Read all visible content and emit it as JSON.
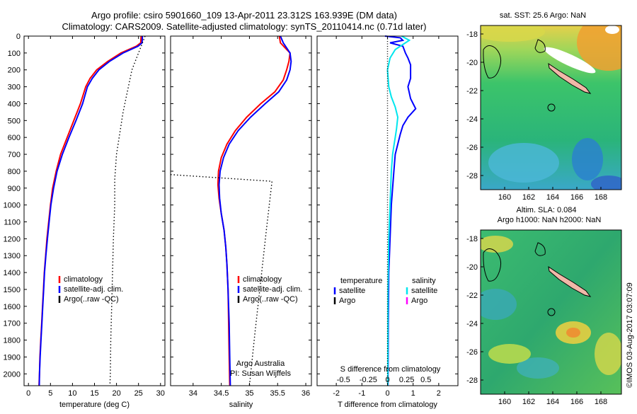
{
  "title": {
    "line1": "Argo profile: csiro 5901660_109 13-Apr-2011 23.312S 163.939E (DM data)",
    "line2": "Climatology: CARS2009. Satellite-adjusted climatology: synTS_20110414.nc (0.71d later)"
  },
  "colors": {
    "climatology": "#ff0000",
    "satellite": "#0000ff",
    "argo": "#000000",
    "sal_satellite": "#00e6ee",
    "sal_argo": "#ff00ff"
  },
  "chart_data": [
    {
      "type": "line",
      "id": "temperature",
      "xlabel": "temperature (deg C)",
      "xlim": [
        -1,
        31
      ],
      "xticks": [
        0,
        5,
        10,
        15,
        20,
        25,
        30
      ],
      "ylim": [
        2070,
        0
      ],
      "yticks": [
        0,
        100,
        200,
        300,
        400,
        500,
        600,
        700,
        800,
        900,
        1000,
        1100,
        1200,
        1300,
        1400,
        1500,
        1600,
        1700,
        1800,
        1900,
        2000
      ],
      "legend": [
        "climatology",
        "satellite-adj. clim.",
        "Argo(..raw -QC)"
      ],
      "series": [
        {
          "name": "climatology",
          "color": "#ff0000",
          "dash": "",
          "points": [
            [
              25.6,
              0
            ],
            [
              25.5,
              40
            ],
            [
              24.5,
              60
            ],
            [
              21,
              100
            ],
            [
              18,
              150
            ],
            [
              15.5,
              200
            ],
            [
              14,
              250
            ],
            [
              13,
              300
            ],
            [
              11.8,
              400
            ],
            [
              10.3,
              500
            ],
            [
              8.8,
              600
            ],
            [
              7.3,
              700
            ],
            [
              6.3,
              800
            ],
            [
              5.5,
              900
            ],
            [
              5,
              1000
            ],
            [
              4.6,
              1100
            ],
            [
              4.2,
              1200
            ],
            [
              3.9,
              1300
            ],
            [
              3.6,
              1400
            ],
            [
              3.4,
              1500
            ],
            [
              3.2,
              1600
            ],
            [
              3,
              1700
            ],
            [
              2.8,
              1800
            ],
            [
              2.6,
              1900
            ],
            [
              2.5,
              2000
            ],
            [
              2.4,
              2070
            ]
          ]
        },
        {
          "name": "satellite-adj. clim.",
          "color": "#0000ff",
          "dash": "",
          "points": [
            [
              25.9,
              0
            ],
            [
              25.8,
              40
            ],
            [
              24.9,
              60
            ],
            [
              21.5,
              100
            ],
            [
              18.4,
              150
            ],
            [
              16,
              200
            ],
            [
              14.5,
              250
            ],
            [
              13.4,
              300
            ],
            [
              12.3,
              400
            ],
            [
              10.8,
              500
            ],
            [
              9.2,
              600
            ],
            [
              7.7,
              700
            ],
            [
              6.5,
              800
            ],
            [
              5.7,
              900
            ],
            [
              5.1,
              1000
            ],
            [
              4.7,
              1100
            ],
            [
              4.3,
              1200
            ],
            [
              3.95,
              1300
            ],
            [
              3.65,
              1400
            ],
            [
              3.45,
              1500
            ],
            [
              3.25,
              1600
            ],
            [
              3.05,
              1700
            ],
            [
              2.85,
              1800
            ],
            [
              2.65,
              1900
            ],
            [
              2.5,
              2000
            ],
            [
              2.45,
              2070
            ]
          ]
        },
        {
          "name": "Argo(..raw -QC)",
          "color": "#000000",
          "dash": "1.5,3",
          "points": [
            [
              26.5,
              0
            ],
            [
              23.5,
              200
            ],
            [
              21.5,
              450
            ],
            [
              20,
              700
            ],
            [
              19.6,
              850
            ],
            [
              19.6,
              1000
            ],
            [
              19.3,
              1200
            ],
            [
              19.1,
              1400
            ],
            [
              18.9,
              1600
            ],
            [
              18.7,
              1800
            ],
            [
              18.6,
              2000
            ],
            [
              18.5,
              2070
            ]
          ]
        }
      ]
    },
    {
      "type": "line",
      "id": "salinity",
      "xlabel": "salinity",
      "xlim": [
        33.6,
        36.1
      ],
      "xticks": [
        34,
        34.5,
        35,
        35.5,
        36
      ],
      "ylim": [
        2070,
        0
      ],
      "legend": [
        "climatology",
        "satellite-adj. clim.",
        "Argo(..raw -QC)"
      ],
      "annotation": [
        "Argo Australia",
        "PI: Susan Wijffels"
      ],
      "series": [
        {
          "name": "climatology",
          "color": "#ff0000",
          "dash": "",
          "points": [
            [
              35.53,
              0
            ],
            [
              35.55,
              40
            ],
            [
              35.72,
              100
            ],
            [
              35.7,
              150
            ],
            [
              35.66,
              200
            ],
            [
              35.6,
              260
            ],
            [
              35.45,
              330
            ],
            [
              35.2,
              400
            ],
            [
              34.95,
              480
            ],
            [
              34.75,
              560
            ],
            [
              34.6,
              640
            ],
            [
              34.5,
              720
            ],
            [
              34.45,
              800
            ],
            [
              34.44,
              880
            ],
            [
              34.46,
              960
            ],
            [
              34.5,
              1050
            ],
            [
              34.55,
              1150
            ],
            [
              34.58,
              1250
            ],
            [
              34.6,
              1350
            ],
            [
              34.62,
              1500
            ],
            [
              34.63,
              1700
            ],
            [
              34.64,
              1900
            ],
            [
              34.65,
              2070
            ]
          ]
        },
        {
          "name": "satellite-adj. clim.",
          "color": "#0000ff",
          "dash": "",
          "points": [
            [
              35.55,
              0
            ],
            [
              35.6,
              40
            ],
            [
              35.72,
              100
            ],
            [
              35.74,
              150
            ],
            [
              35.72,
              200
            ],
            [
              35.66,
              260
            ],
            [
              35.52,
              330
            ],
            [
              35.28,
              400
            ],
            [
              35.02,
              480
            ],
            [
              34.8,
              560
            ],
            [
              34.64,
              640
            ],
            [
              34.54,
              720
            ],
            [
              34.48,
              800
            ],
            [
              34.46,
              880
            ],
            [
              34.47,
              960
            ],
            [
              34.5,
              1050
            ],
            [
              34.55,
              1150
            ],
            [
              34.58,
              1250
            ],
            [
              34.6,
              1350
            ],
            [
              34.62,
              1500
            ],
            [
              34.64,
              1700
            ],
            [
              34.65,
              1900
            ],
            [
              34.66,
              2070
            ]
          ]
        },
        {
          "name": "Argo(..raw -QC)",
          "color": "#000000",
          "dash": "1.5,3",
          "points": [
            [
              33.6,
              820
            ],
            [
              35.4,
              860
            ],
            [
              35.3,
              1150
            ],
            [
              35.2,
              1450
            ],
            [
              35.1,
              1750
            ],
            [
              35.0,
              2070
            ]
          ]
        }
      ]
    },
    {
      "type": "line",
      "id": "difference",
      "xlabel": "T difference from climatology",
      "top_xlabel": "S difference from climatology",
      "xlim": [
        -2.75,
        2.75
      ],
      "xticks": [
        -2,
        -1,
        0,
        1,
        2
      ],
      "sticks": [
        "-0.5",
        "-0.25",
        "0",
        "0.25",
        "0.5"
      ],
      "ylim": [
        2070,
        0
      ],
      "legend_headers": [
        "temperature",
        "salinity"
      ],
      "legend": [
        [
          "satellite",
          "Argo"
        ],
        [
          "satellite",
          "Argo"
        ]
      ],
      "series": [
        {
          "name": "temperature satellite",
          "color": "#0000ff",
          "dash": "",
          "points": [
            [
              -0.1,
              0
            ],
            [
              0.5,
              10
            ],
            [
              0.6,
              25
            ],
            [
              0.1,
              40
            ],
            [
              0.6,
              60
            ],
            [
              0.7,
              100
            ],
            [
              0.8,
              130
            ],
            [
              0.9,
              170
            ],
            [
              0.9,
              250
            ],
            [
              0.8,
              300
            ],
            [
              0.9,
              370
            ],
            [
              1.0,
              400
            ],
            [
              1.1,
              430
            ],
            [
              0.8,
              480
            ],
            [
              0.6,
              530
            ],
            [
              0.5,
              580
            ],
            [
              0.4,
              640
            ],
            [
              0.3,
              700
            ],
            [
              0.25,
              800
            ],
            [
              0.2,
              900
            ],
            [
              0.15,
              1000
            ],
            [
              0.1,
              1200
            ],
            [
              0.05,
              1400
            ],
            [
              0.03,
              1700
            ],
            [
              0.02,
              2070
            ]
          ]
        },
        {
          "name": "salinity satellite",
          "color": "#00e6ee",
          "dash": "",
          "points": [
            [
              0.55,
              0
            ],
            [
              0.85,
              25
            ],
            [
              0.6,
              50
            ],
            [
              0.3,
              80
            ],
            [
              0.1,
              130
            ],
            [
              0.0,
              200
            ],
            [
              0.05,
              300
            ],
            [
              0.15,
              360
            ],
            [
              0.3,
              420
            ],
            [
              0.4,
              480
            ],
            [
              0.35,
              550
            ],
            [
              0.3,
              600
            ],
            [
              0.25,
              650
            ],
            [
              0.2,
              700
            ],
            [
              0.15,
              800
            ],
            [
              0.1,
              1000
            ],
            [
              0.05,
              1200
            ],
            [
              0.02,
              1500
            ],
            [
              0.01,
              2070
            ]
          ]
        },
        {
          "name": "zero",
          "color": "#000000",
          "dash": "1,2.5",
          "points": [
            [
              0,
              0
            ],
            [
              0,
              2070
            ]
          ]
        }
      ]
    }
  ],
  "maps": {
    "top": {
      "title": "sat. SST: 25.6 Argo: NaN",
      "lon_ticks": [
        "160",
        "162",
        "164",
        "166",
        "168"
      ],
      "lat_ticks": [
        "-18",
        "-20",
        "-22",
        "-24",
        "-26",
        "-28"
      ]
    },
    "bottom": {
      "title1": "Altim. SLA: 0.084",
      "title2": "Argo h1000: NaN h2000: NaN",
      "lon_ticks": [
        "160",
        "162",
        "164",
        "166",
        "168"
      ],
      "lat_ticks": [
        "-18",
        "-20",
        "-22",
        "-24",
        "-26",
        "-28"
      ]
    },
    "credit": "©IMOS 03-Aug-2017 03:07:09"
  }
}
